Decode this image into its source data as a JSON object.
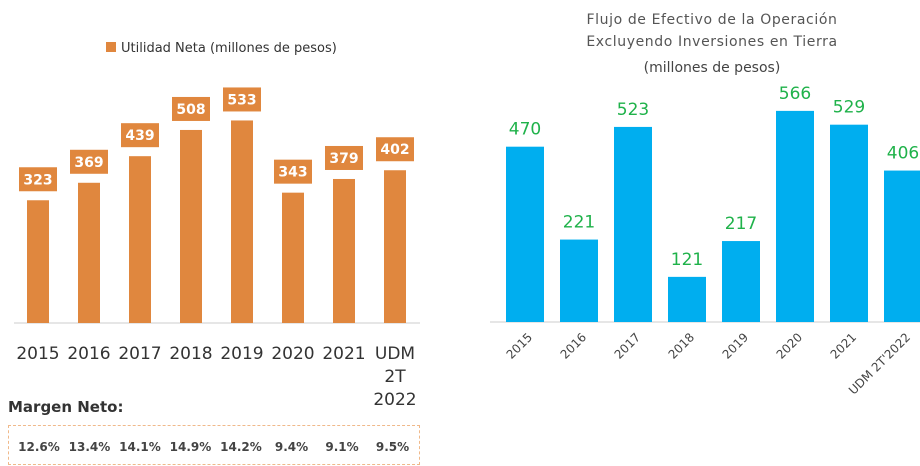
{
  "chart_data": [
    {
      "type": "bar",
      "series": [
        {
          "name": "Utilidad Neta (millones de pesos)",
          "color": "#e0873e",
          "values": [
            323,
            369,
            439,
            508,
            533,
            343,
            379,
            402
          ]
        }
      ],
      "categories": [
        "2015",
        "2016",
        "2017",
        "2018",
        "2019",
        "2020",
        "2021",
        "UDM 2T 2022"
      ],
      "legend": "top"
    },
    {
      "type": "bar",
      "title": [
        "Flujo de Efectivo de la Operación",
        "Excluyendo Inversiones en Tierra"
      ],
      "subtitle": "(millones de pesos)",
      "color": "#00aeef",
      "label_color": "#1fb24a",
      "categories": [
        "2015",
        "2016",
        "2017",
        "2018",
        "2019",
        "2020",
        "2021",
        "UDM 2T'2022"
      ],
      "values": [
        470,
        221,
        523,
        121,
        217,
        566,
        529,
        406
      ]
    }
  ],
  "margin": {
    "label": "Margen Neto:",
    "values": [
      "12.6%",
      "13.4%",
      "14.1%",
      "14.9%",
      "14.2%",
      "9.4%",
      "9.1%",
      "9.5%"
    ]
  }
}
